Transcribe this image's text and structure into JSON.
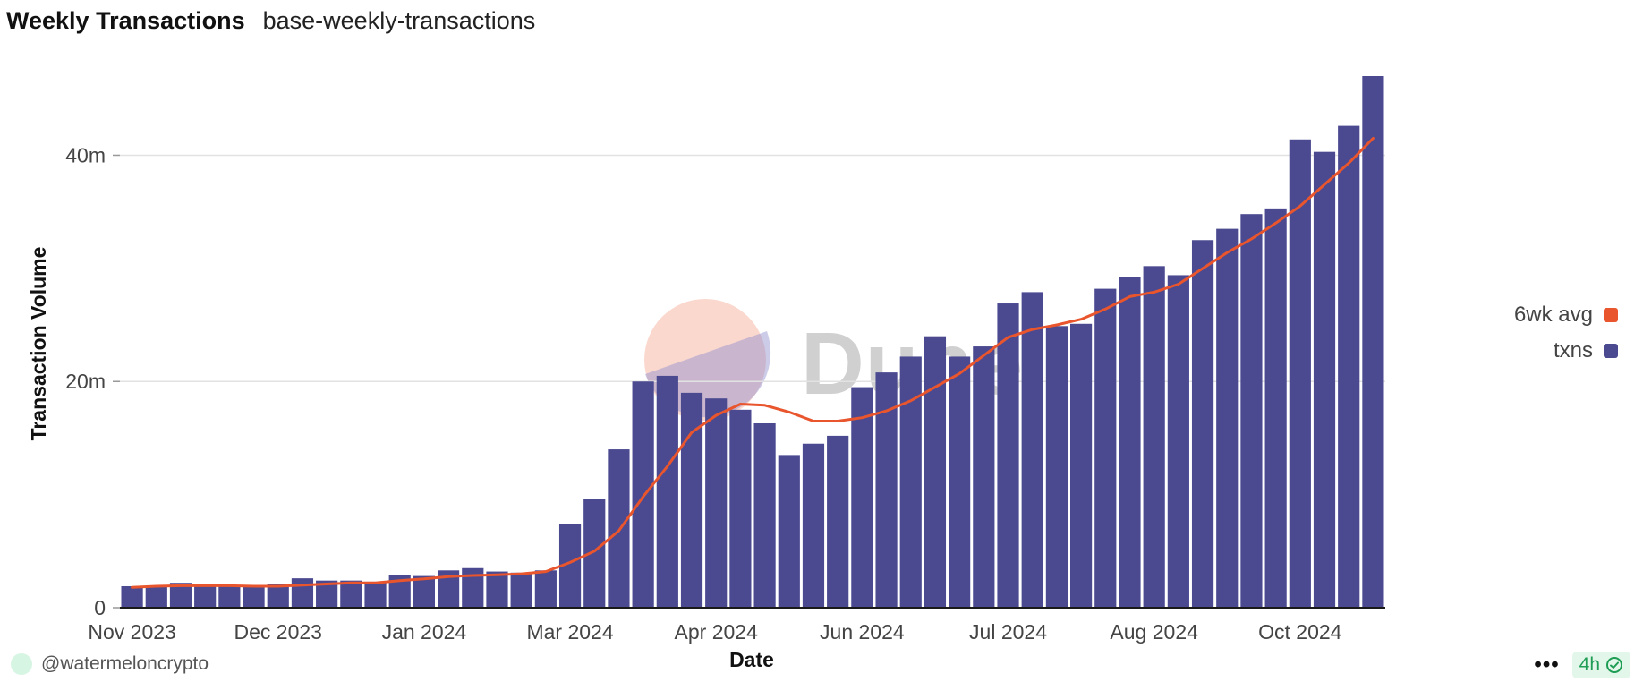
{
  "header": {
    "title": "Weekly Transactions",
    "subtitle": "base-weekly-transactions"
  },
  "chart_data": {
    "type": "bar",
    "title": "Weekly Transactions",
    "xlabel": "Date",
    "ylabel": "Transaction Volume",
    "ylim": [
      0,
      47
    ],
    "yticks": [
      {
        "value": 0,
        "label": "0"
      },
      {
        "value": 20,
        "label": "20m"
      },
      {
        "value": 40,
        "label": "40m"
      }
    ],
    "grid": true,
    "legend_position": "right",
    "xtick_labels": [
      {
        "index": 0,
        "label": "Nov 2023"
      },
      {
        "index": 6,
        "label": "Dec 2023"
      },
      {
        "index": 12,
        "label": "Jan 2024"
      },
      {
        "index": 18,
        "label": "Mar 2024"
      },
      {
        "index": 24,
        "label": "Apr 2024"
      },
      {
        "index": 30,
        "label": "Jun 2024"
      },
      {
        "index": 36,
        "label": "Jul 2024"
      },
      {
        "index": 42,
        "label": "Aug 2024"
      },
      {
        "index": 48,
        "label": "Oct 2024"
      }
    ],
    "series": [
      {
        "name": "txns",
        "type": "bar",
        "color": "#4b4a91",
        "values": [
          1.9,
          1.9,
          2.2,
          2.0,
          1.9,
          1.9,
          2.1,
          2.6,
          2.4,
          2.4,
          2.3,
          2.9,
          2.8,
          3.3,
          3.5,
          3.2,
          3.1,
          3.3,
          7.4,
          9.6,
          14.0,
          20.0,
          20.5,
          19.0,
          18.5,
          17.5,
          16.3,
          13.5,
          14.5,
          15.2,
          19.5,
          20.8,
          22.2,
          24.0,
          22.2,
          23.1,
          26.9,
          27.9,
          24.9,
          25.1,
          28.2,
          29.2,
          30.2,
          29.4,
          32.5,
          33.5,
          34.8,
          35.3,
          41.4,
          40.3,
          42.6,
          47.0
        ]
      },
      {
        "name": "6wk avg",
        "type": "line",
        "color": "#e9552d",
        "values": [
          1.8,
          1.9,
          1.95,
          1.95,
          1.95,
          1.9,
          1.9,
          2.0,
          2.1,
          2.2,
          2.2,
          2.4,
          2.55,
          2.75,
          2.85,
          2.9,
          3.0,
          3.2,
          4.0,
          5.0,
          6.8,
          9.8,
          12.5,
          15.5,
          17.0,
          18.0,
          17.9,
          17.3,
          16.5,
          16.5,
          16.8,
          17.4,
          18.3,
          19.5,
          20.7,
          22.3,
          23.9,
          24.6,
          25.0,
          25.5,
          26.4,
          27.5,
          27.9,
          28.6,
          30.0,
          31.4,
          32.6,
          34.0,
          35.5,
          37.4,
          39.3,
          41.5
        ]
      }
    ]
  },
  "legend": [
    {
      "label": "6wk avg",
      "color": "#e9552d"
    },
    {
      "label": "txns",
      "color": "#4b4a91"
    }
  ],
  "watermark": {
    "text": "Dune"
  },
  "footer": {
    "author": "@watermeloncrypto",
    "more_label": "•••",
    "refresh_label": "4h"
  }
}
